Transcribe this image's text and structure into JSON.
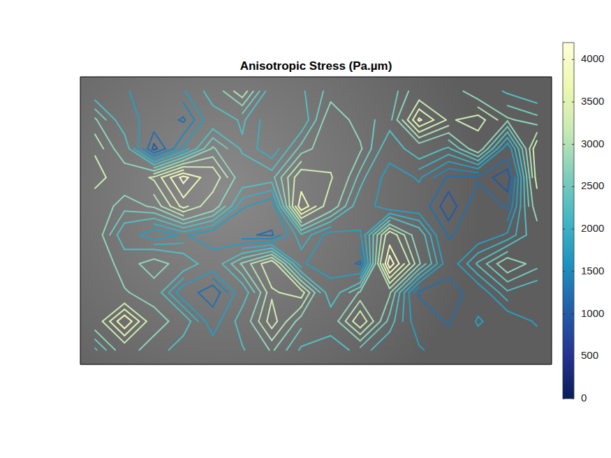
{
  "chart_data": {
    "type": "contour",
    "title": "Anisotropic Stress (Pa.µm)",
    "tick_labels": false,
    "cells": [
      [
        2000,
        1800,
        1500,
        1700,
        2500,
        3200,
        2000,
        2200,
        2600,
        2500,
        2300,
        3000,
        3000,
        2500,
        2200,
        2000
      ],
      [
        2800,
        2000,
        1500,
        1200,
        2000,
        2300,
        1800,
        2000,
        3000,
        2600,
        2400,
        3800,
        3200,
        3400,
        2800,
        2600
      ],
      [
        3200,
        2500,
        900,
        1800,
        2800,
        2200,
        1800,
        2600,
        3000,
        2800,
        2000,
        2500,
        2200,
        3000,
        1500,
        3500
      ],
      [
        3400,
        3000,
        3300,
        4100,
        3500,
        2500,
        2400,
        3500,
        3300,
        2400,
        1500,
        1800,
        1200,
        1200,
        800,
        3400
      ],
      [
        3000,
        2600,
        2800,
        3600,
        3000,
        1800,
        1500,
        4000,
        3000,
        2000,
        1500,
        1500,
        800,
        1500,
        1200,
        3000
      ],
      [
        3000,
        2000,
        1500,
        1800,
        1500,
        1300,
        1200,
        2200,
        1600,
        1700,
        3500,
        2500,
        1200,
        1500,
        1800,
        2500
      ],
      [
        3200,
        2500,
        3000,
        2500,
        2000,
        2800,
        3500,
        1800,
        1500,
        1200,
        4200,
        2800,
        1500,
        2300,
        3000,
        2600
      ],
      [
        3000,
        2800,
        2500,
        1500,
        1000,
        2000,
        3200,
        3400,
        2000,
        2800,
        2800,
        1200,
        1000,
        1500,
        2200,
        2000
      ],
      [
        3000,
        4000,
        3000,
        2500,
        1500,
        2500,
        3400,
        2600,
        2500,
        3500,
        2400,
        1500,
        1200,
        1800,
        1500,
        1800
      ],
      [
        2200,
        3000,
        2500,
        2000,
        2000,
        2200,
        2800,
        2200,
        2000,
        2400,
        2000,
        1800,
        1500,
        1500,
        1500,
        1500
      ]
    ],
    "levels": [
      250,
      500,
      750,
      1000,
      1250,
      1500,
      1750,
      2000,
      2250,
      2500,
      2750,
      3000,
      3250,
      3500,
      3750,
      4000
    ],
    "colorbar_range": [
      0,
      4200
    ],
    "colorbar_ticks": [
      0,
      500,
      1000,
      1500,
      2000,
      2500,
      3000,
      3500,
      4000
    ]
  }
}
